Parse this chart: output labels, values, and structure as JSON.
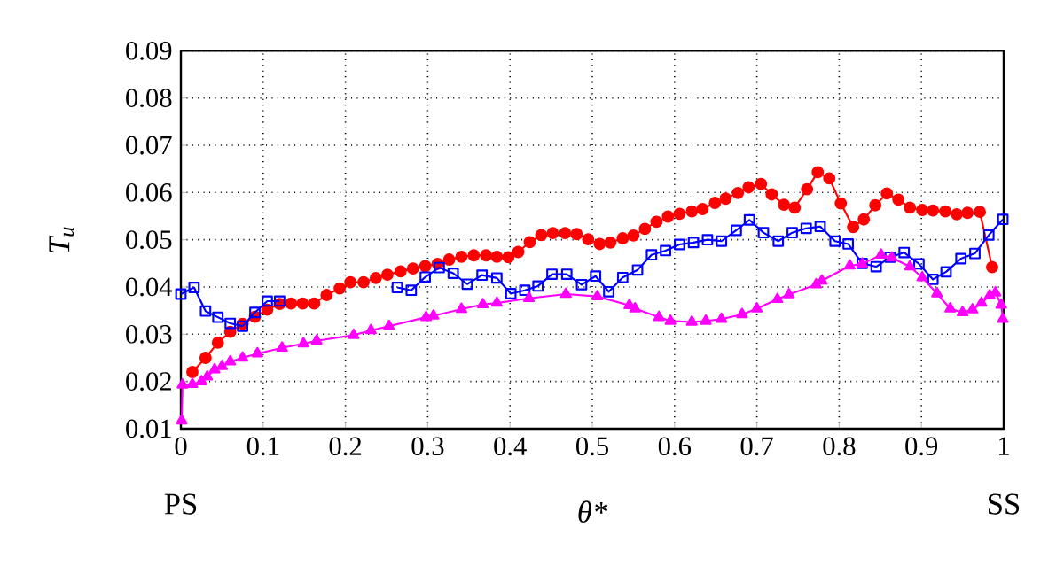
{
  "chart_data": {
    "type": "line",
    "xlabel": "θ*",
    "ylabel": "T$_{u}$",
    "xlim": [
      0,
      1
    ],
    "ylim": [
      0.01,
      0.09
    ],
    "xticks": [
      0,
      0.1,
      0.2,
      0.3,
      0.4,
      0.5,
      0.6,
      0.7,
      0.8,
      0.9,
      1
    ],
    "yticks": [
      0.01,
      0.02,
      0.03,
      0.04,
      0.05,
      0.06,
      0.07,
      0.08,
      0.09
    ],
    "grid": true,
    "line_style": "solid",
    "annotations": [
      "PS",
      "SS"
    ],
    "series": [
      {
        "color": "#ff0000",
        "marker": "circle",
        "x": [
          0.014,
          0.03,
          0.045,
          0.06,
          0.075,
          0.09,
          0.105,
          0.12,
          0.134,
          0.148,
          0.162,
          0.177,
          0.193,
          0.206,
          0.222,
          0.237,
          0.251,
          0.267,
          0.282,
          0.297,
          0.312,
          0.326,
          0.341,
          0.356,
          0.371,
          0.384,
          0.398,
          0.41,
          0.424,
          0.438,
          0.452,
          0.467,
          0.481,
          0.495,
          0.509,
          0.522,
          0.537,
          0.55,
          0.564,
          0.578,
          0.592,
          0.606,
          0.621,
          0.634,
          0.649,
          0.662,
          0.677,
          0.69,
          0.705,
          0.718,
          0.733,
          0.746,
          0.761,
          0.774,
          0.788,
          0.802,
          0.817,
          0.83,
          0.844,
          0.858,
          0.872,
          0.886,
          0.901,
          0.914,
          0.929,
          0.943,
          0.956,
          0.971,
          0.986
        ],
        "values": [
          0.022,
          0.025,
          0.0282,
          0.0305,
          0.0322,
          0.0337,
          0.0352,
          0.0364,
          0.0365,
          0.0365,
          0.0365,
          0.0383,
          0.0397,
          0.041,
          0.041,
          0.0419,
          0.0426,
          0.0433,
          0.0439,
          0.0444,
          0.0449,
          0.0458,
          0.0464,
          0.0467,
          0.0467,
          0.0464,
          0.0463,
          0.0474,
          0.0495,
          0.051,
          0.0514,
          0.0514,
          0.0512,
          0.0501,
          0.0491,
          0.0494,
          0.0503,
          0.0509,
          0.0523,
          0.0538,
          0.0549,
          0.0555,
          0.056,
          0.0565,
          0.0578,
          0.0587,
          0.0599,
          0.0611,
          0.0618,
          0.0596,
          0.0574,
          0.0568,
          0.0607,
          0.0643,
          0.063,
          0.0577,
          0.0527,
          0.0543,
          0.0573,
          0.0598,
          0.0585,
          0.0568,
          0.0563,
          0.0562,
          0.056,
          0.0554,
          0.0557,
          0.0559,
          0.0442
        ]
      },
      {
        "color": "#0000ff",
        "marker": "square",
        "x": [
          0,
          0.016,
          0.03,
          0.045,
          0.06,
          0.075,
          0.09,
          0.105,
          0.12,
          0.19,
          0.263,
          0.28,
          0.297,
          0.314,
          0.331,
          0.348,
          0.366,
          0.384,
          0.401,
          0.418,
          0.434,
          0.451,
          0.469,
          0.487,
          0.504,
          0.52,
          0.537,
          0.555,
          0.572,
          0.589,
          0.606,
          0.623,
          0.64,
          0.657,
          0.675,
          0.691,
          0.708,
          0.726,
          0.743,
          0.76,
          0.777,
          0.795,
          0.811,
          0.828,
          0.845,
          0.862,
          0.879,
          0.897,
          0.914,
          0.93,
          0.948,
          0.965,
          0.982,
          0.999
        ],
        "values": [
          0.0385,
          0.0399,
          0.0349,
          0.0336,
          0.0323,
          0.0317,
          0.0346,
          0.037,
          0.037,
          null,
          0.0399,
          0.0393,
          0.0421,
          0.0441,
          0.0429,
          0.0406,
          0.0425,
          0.0419,
          0.0386,
          0.0393,
          0.0402,
          0.0427,
          0.0427,
          0.0405,
          0.0423,
          0.039,
          0.042,
          0.0436,
          0.0468,
          0.0477,
          0.049,
          0.0494,
          0.05,
          0.0497,
          0.052,
          0.0542,
          0.0515,
          0.0497,
          0.0515,
          0.0524,
          0.0528,
          0.0497,
          0.0491,
          0.045,
          0.0443,
          0.0463,
          0.0473,
          0.0449,
          0.0416,
          0.0432,
          0.046,
          0.0471,
          0.051,
          0.0543
        ]
      },
      {
        "color": "#ff00ff",
        "marker": "triangle",
        "x": [
          0.001,
          0.002,
          0.014,
          0.025,
          0.032,
          0.041,
          0.05,
          0.06,
          0.075,
          0.093,
          0.123,
          0.149,
          0.165,
          0.21,
          0.231,
          0.253,
          0.298,
          0.307,
          0.341,
          0.367,
          0.384,
          0.423,
          0.468,
          0.506,
          0.545,
          0.552,
          0.581,
          0.595,
          0.621,
          0.638,
          0.657,
          0.682,
          0.7,
          0.725,
          0.739,
          0.772,
          0.779,
          0.813,
          0.828,
          0.851,
          0.864,
          0.886,
          0.901,
          0.919,
          0.935,
          0.95,
          0.962,
          0.973,
          0.983,
          0.99,
          0.997,
          0.999
        ],
        "values": [
          0.0117,
          0.0193,
          0.0194,
          0.02,
          0.021,
          0.0225,
          0.0232,
          0.0242,
          0.025,
          0.0259,
          0.0271,
          0.028,
          0.0286,
          0.0298,
          0.0308,
          0.0317,
          0.0336,
          0.0339,
          0.0353,
          0.0363,
          0.0366,
          0.0376,
          0.0385,
          0.038,
          0.0361,
          0.0354,
          0.0336,
          0.0328,
          0.0326,
          0.0328,
          0.0332,
          0.0342,
          0.0354,
          0.0374,
          0.0384,
          0.0405,
          0.0413,
          0.0445,
          0.0449,
          0.0468,
          0.0462,
          0.0443,
          0.042,
          0.0386,
          0.0354,
          0.0346,
          0.0352,
          0.0366,
          0.0382,
          0.0388,
          0.0362,
          0.0332
        ]
      }
    ]
  }
}
